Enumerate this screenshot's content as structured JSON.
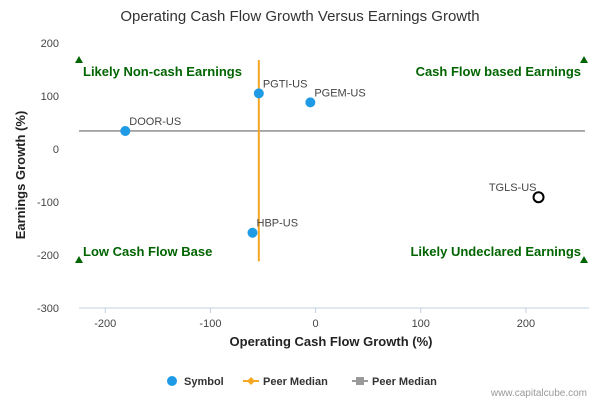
{
  "chart_data": {
    "type": "scatter",
    "title": "Operating Cash Flow Growth Versus Earnings Growth",
    "xlabel": "Operating Cash Flow Growth (%)",
    "ylabel": "Earnings Growth (%)",
    "xlim": [
      -225,
      260
    ],
    "ylim": [
      -300,
      200
    ],
    "xticks": [
      -200,
      -100,
      0,
      100,
      200
    ],
    "yticks": [
      -300,
      -200,
      -100,
      0,
      100,
      200
    ],
    "grid": false,
    "legend_position": "bottom",
    "points": [
      {
        "label": "DOOR-US",
        "x": -181,
        "y": 34,
        "style": "filled"
      },
      {
        "label": "PGTI-US",
        "x": -54,
        "y": 105,
        "style": "filled"
      },
      {
        "label": "PGEM-US",
        "x": -5,
        "y": 88,
        "style": "filled"
      },
      {
        "label": "HBP-US",
        "x": -60,
        "y": -158,
        "style": "filled"
      },
      {
        "label": "TGLS-US",
        "x": 212,
        "y": -91,
        "style": "hollow"
      }
    ],
    "peer_median_x": -54,
    "peer_median_y": 34,
    "median_line_y_extent": [
      -212,
      168
    ],
    "quadrant_labels": {
      "top_left": "Likely Non-cash Earnings",
      "top_right": "Cash Flow based Earnings",
      "bottom_left": "Low Cash Flow Base",
      "bottom_right": "Likely Undeclared Earnings"
    },
    "legend": [
      {
        "label": "Symbol",
        "marker": "circle",
        "color": "#1f9be6"
      },
      {
        "label": "Peer Median",
        "marker": "diamond-line",
        "color": "#f5a623"
      },
      {
        "label": "Peer Median",
        "marker": "square-line",
        "color": "#999999"
      }
    ],
    "colors": {
      "point_fill": "#1f9be6",
      "hollow_stroke": "#000000",
      "vertical_median": "#f5a623",
      "horizontal_median": "#999999",
      "quadrant_text": "#006400",
      "quadrant_marker": "#006400"
    }
  },
  "credit": "www.capitalcube.com"
}
